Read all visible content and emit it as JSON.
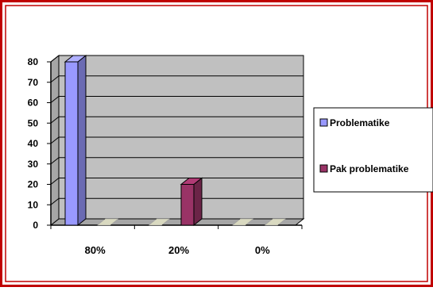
{
  "colors": {
    "frame_outer": "#c00000",
    "frame_inner": "#c00000",
    "plot_wall": "#c0c0c0",
    "plot_floor": "#a6a6a6",
    "series_problematike": "#9999ff",
    "series_pak_problematike": "#993366"
  },
  "chart_data": {
    "type": "bar",
    "style": "3d-clustered-column",
    "categories": [
      "80%",
      "20%",
      "0%"
    ],
    "series": [
      {
        "name": "Problematike",
        "values": [
          80,
          0,
          0
        ],
        "color": "#9999ff"
      },
      {
        "name": "Pak problematike",
        "values": [
          0,
          20,
          0
        ],
        "color": "#993366"
      }
    ],
    "y_ticks": [
      "0",
      "10",
      "20",
      "30",
      "40",
      "50",
      "60",
      "70",
      "80"
    ],
    "ylim": [
      0,
      80
    ],
    "grid": true,
    "legend_position": "right"
  }
}
